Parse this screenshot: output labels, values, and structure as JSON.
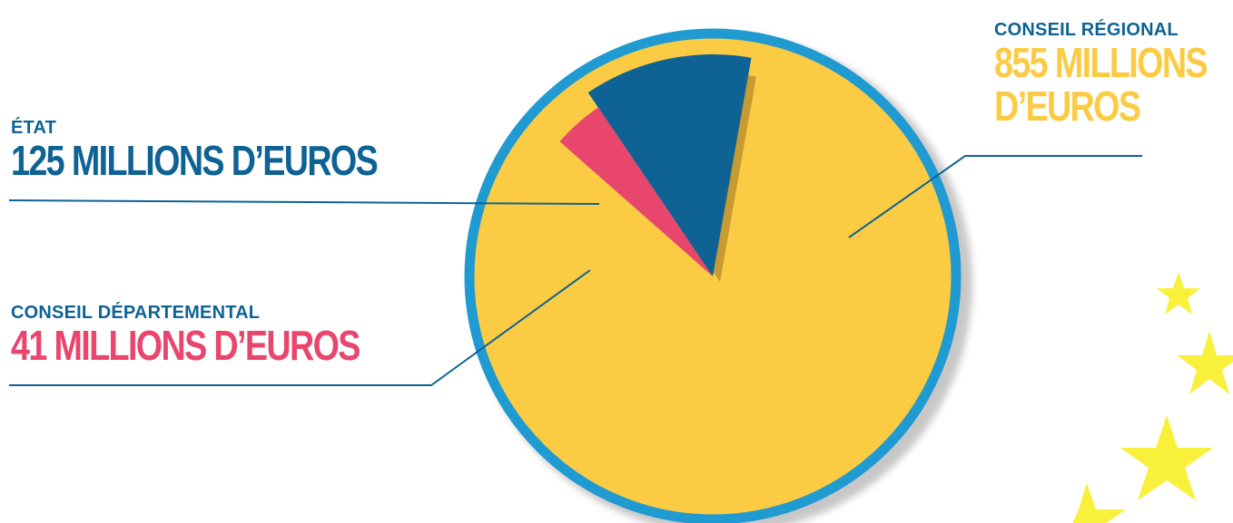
{
  "chart_data": {
    "type": "pie",
    "labels": [
      "CONSEIL RÉGIONAL",
      "ÉTAT",
      "CONSEIL DÉPARTEMENTAL"
    ],
    "values": [
      855,
      125,
      41
    ],
    "value_labels": [
      "855 MILLIONS D’EUROS",
      "125 MILLIONS D’EUROS",
      "41 MILLIONS D’EUROS"
    ],
    "colors": [
      "#FBCB44",
      "#0E6394",
      "#E9466E"
    ],
    "rim_color": "#1F9BD2",
    "label_color_category": "#0E6394",
    "leader_line_color": "#0E6394",
    "stars_color": "#F9F03B"
  }
}
